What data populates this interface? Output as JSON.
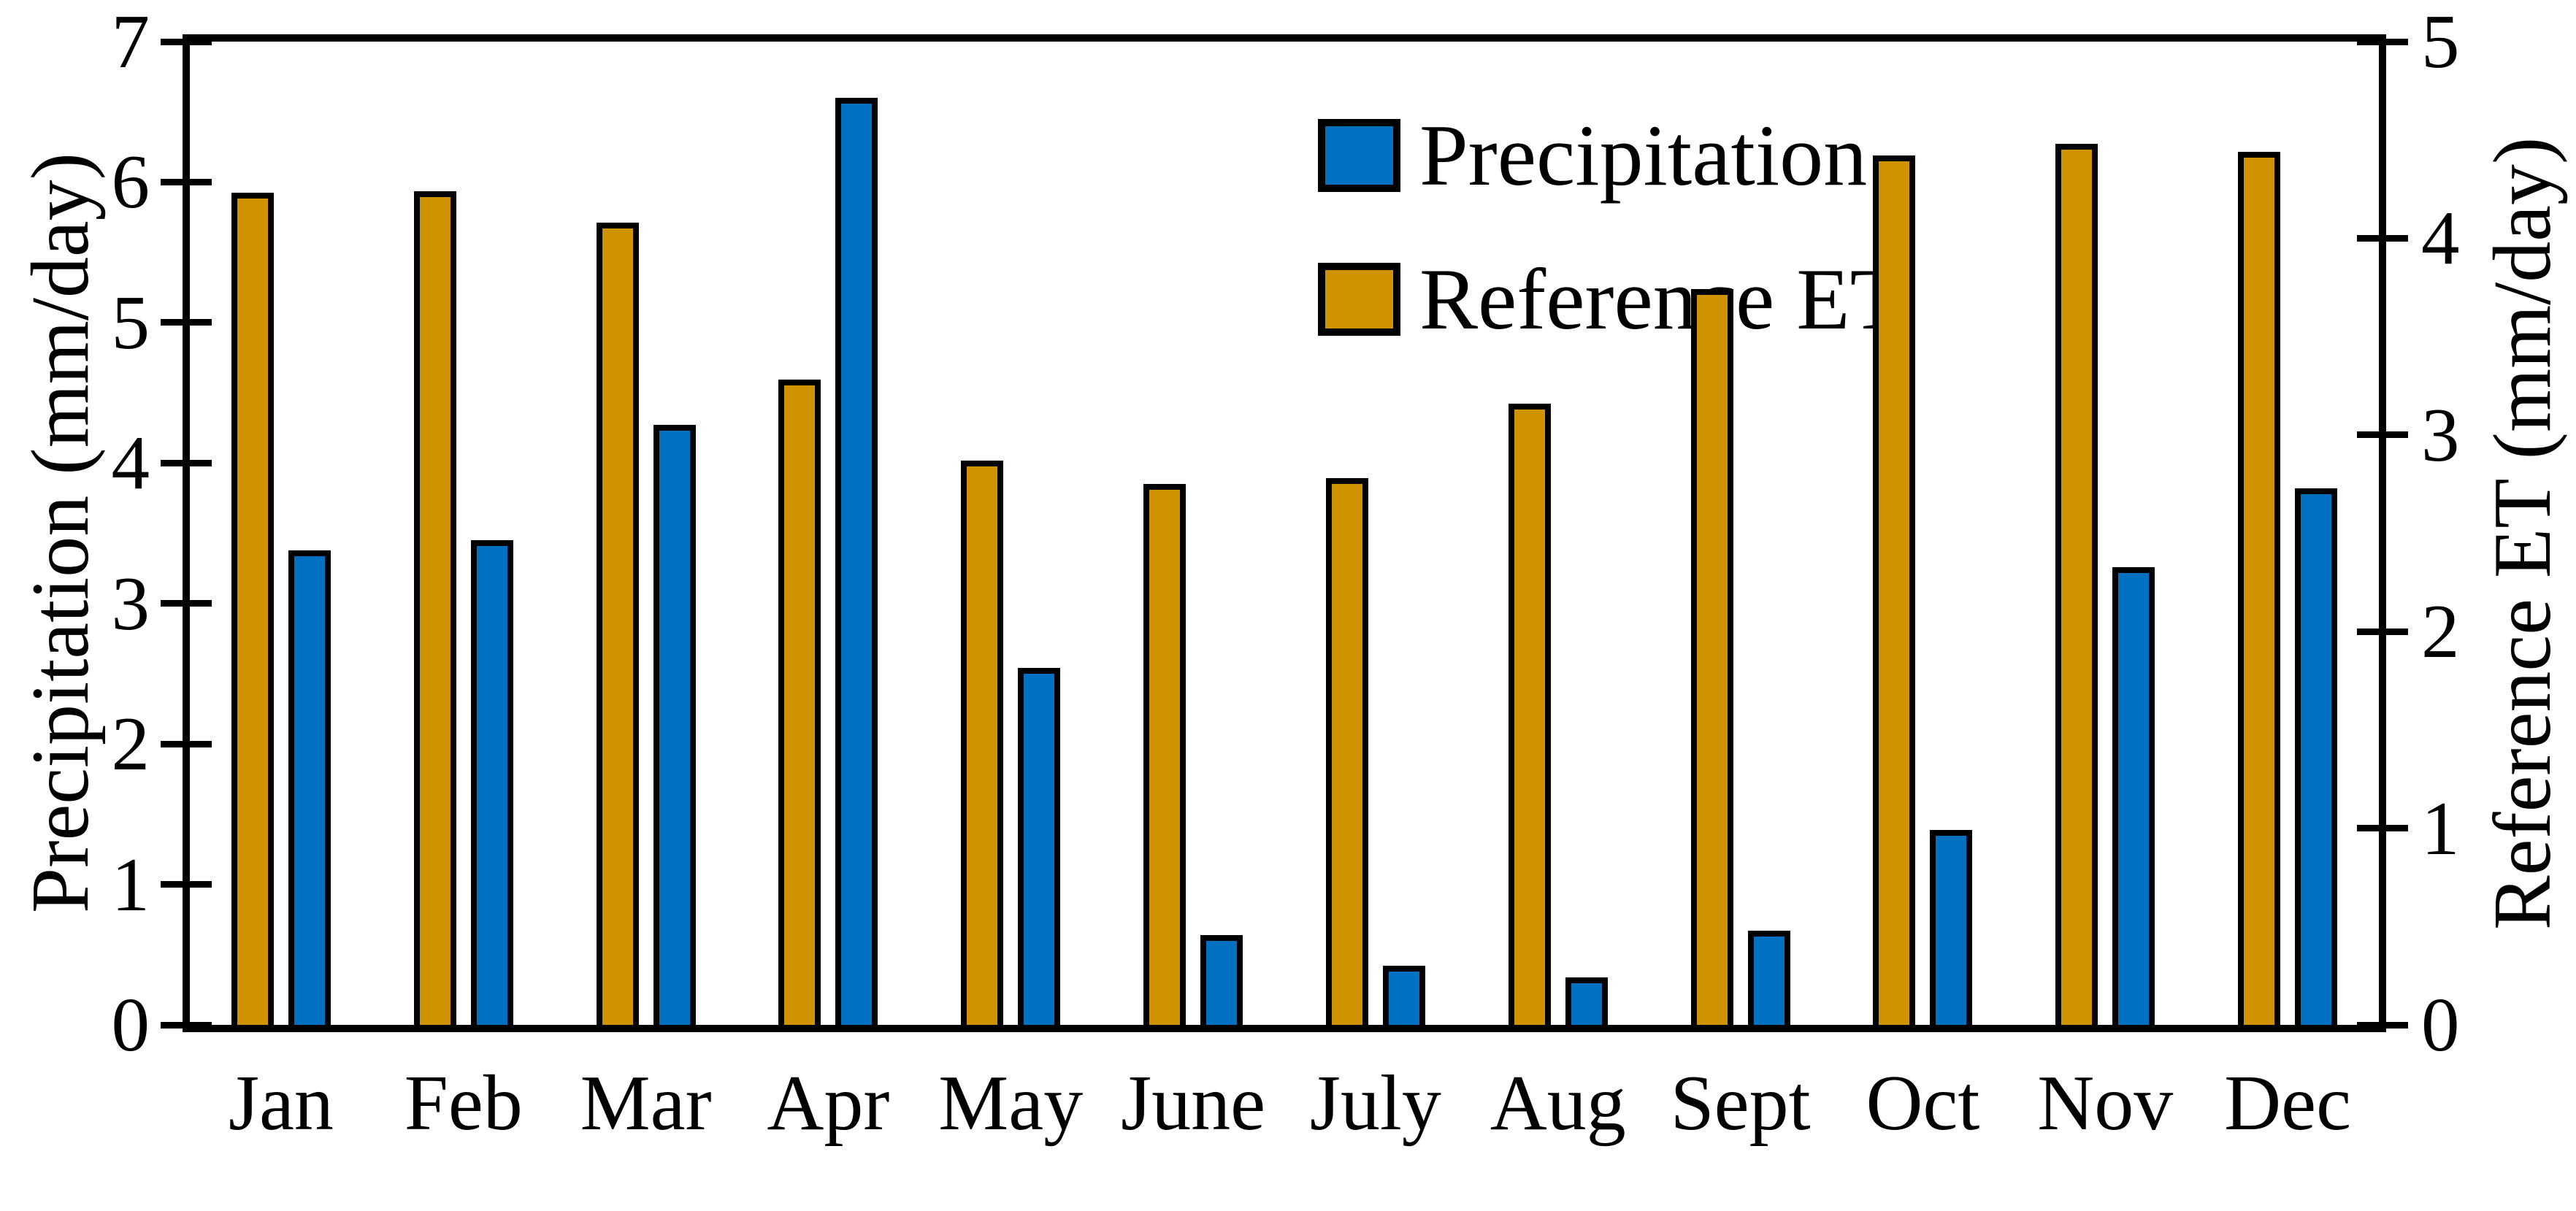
{
  "chart_data": {
    "type": "bar",
    "title": "",
    "categories": [
      "Jan",
      "Feb",
      "Mar",
      "Apr",
      "May",
      "June",
      "July",
      "Aug",
      "Sept",
      "Oct",
      "Nov",
      "Dec"
    ],
    "series": [
      {
        "name": "Precipitation",
        "axis": "left",
        "slot": 1,
        "color": "#0070C0",
        "values": [
          3.38,
          3.45,
          4.27,
          6.6,
          2.54,
          0.64,
          0.42,
          0.34,
          0.67,
          1.39,
          3.26,
          3.82
        ]
      },
      {
        "name": "Reference ET",
        "axis": "right",
        "slot": 0,
        "color": "#D09300",
        "values": [
          4.23,
          4.24,
          4.08,
          3.28,
          2.87,
          2.75,
          2.78,
          3.16,
          3.74,
          4.42,
          4.48,
          4.44
        ]
      }
    ],
    "left_axis": {
      "label": "Precipitation  (mm/day)",
      "min": 0,
      "max": 7,
      "ticks": [
        0,
        1,
        2,
        3,
        4,
        5,
        6,
        7
      ]
    },
    "right_axis": {
      "label": "Reference  ET  (mm/day)",
      "min": 0,
      "max": 5,
      "ticks": [
        0,
        1,
        2,
        3,
        4,
        5
      ]
    },
    "legend": {
      "position": "inside-top-center",
      "entries": [
        "Precipitation",
        "Reference ET"
      ]
    },
    "grid": false,
    "axis_color": "#000000",
    "background_color": "#FFFFFF",
    "bar_outline_color": "#000000"
  }
}
